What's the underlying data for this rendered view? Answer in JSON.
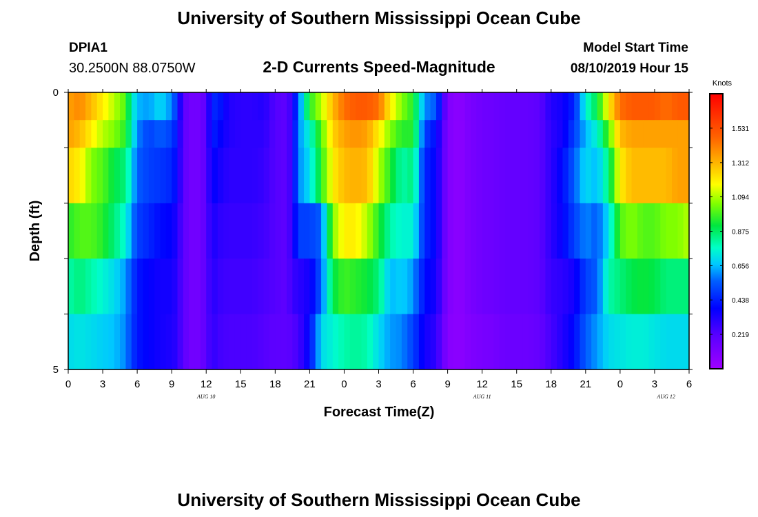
{
  "page": {
    "title": "University of Southern Mississippi Ocean Cube",
    "footer_title": "University of Southern Mississippi Ocean Cube"
  },
  "header": {
    "station_id": "DPIA1",
    "station_coords": "30.2500N 88.0750W",
    "plot_title": "2-D Currents Speed-Magnitude",
    "model_label": "Model Start Time",
    "model_time": "08/10/2019 Hour 15"
  },
  "chart_data": {
    "type": "heatmap",
    "title": "2-D Currents Speed-Magnitude",
    "xlabel": "Forecast Time(Z)",
    "ylabel": "Depth (ft)",
    "ylim": [
      0,
      5
    ],
    "y_tick_labels": [
      "0",
      "5"
    ],
    "x_tick_labels": [
      "0",
      "3",
      "6",
      "9",
      "12",
      "15",
      "18",
      "21",
      "0",
      "3",
      "6",
      "9",
      "12",
      "15",
      "18",
      "21",
      "0",
      "3",
      "6"
    ],
    "date_labels": [
      {
        "text": "AUG 10",
        "hour": 12
      },
      {
        "text": "AUG 11",
        "hour": 36
      },
      {
        "text": "AUG 12",
        "hour": 52
      }
    ],
    "x_range_hours": [
      0,
      54
    ],
    "colorbar": {
      "unit": "Knots",
      "ticks": [
        "1.531",
        "1.312",
        "1.094",
        "0.875",
        "0.656",
        "0.438",
        "0.219"
      ],
      "min": 0.0,
      "max": 1.75
    },
    "depth_rows": [
      0,
      0.5,
      1.5,
      2.5,
      3.5,
      4.5
    ],
    "hour_step": 0.5,
    "speed_anchors": {
      "hours": [
        0,
        1,
        2,
        3,
        4,
        5,
        5.5,
        6,
        7,
        8,
        9,
        9.5,
        10,
        11,
        12,
        12.5,
        13,
        14,
        15,
        16,
        17,
        18,
        19,
        19.5,
        20,
        21,
        22,
        23,
        24,
        25,
        26,
        27,
        28,
        29,
        30,
        31,
        32,
        33,
        34,
        35,
        36,
        37,
        38,
        39,
        40,
        41,
        42,
        43,
        44,
        45,
        46,
        47,
        48,
        49,
        50,
        51,
        52,
        53,
        54
      ],
      "rows": [
        [
          1.35,
          1.4,
          1.3,
          1.2,
          1.1,
          1.0,
          0.78,
          0.65,
          0.62,
          0.7,
          0.6,
          0.45,
          0.2,
          0.12,
          0.2,
          0.45,
          0.45,
          0.32,
          0.3,
          0.3,
          0.32,
          0.22,
          0.2,
          0.3,
          0.55,
          0.95,
          1.1,
          1.3,
          1.45,
          1.5,
          1.5,
          1.45,
          1.2,
          1.05,
          0.95,
          0.6,
          0.55,
          0.1,
          0.06,
          0.12,
          0.15,
          0.16,
          0.18,
          0.18,
          0.18,
          0.2,
          0.32,
          0.35,
          0.45,
          0.75,
          0.9,
          1.2,
          1.45,
          1.5,
          1.5,
          1.5,
          1.45,
          1.5,
          1.5
        ],
        [
          1.35,
          1.3,
          1.2,
          1.1,
          1.05,
          0.95,
          0.78,
          0.6,
          0.5,
          0.55,
          0.5,
          0.4,
          0.2,
          0.12,
          0.2,
          0.45,
          0.4,
          0.32,
          0.3,
          0.3,
          0.3,
          0.22,
          0.2,
          0.3,
          0.6,
          0.75,
          1.0,
          1.25,
          1.35,
          1.38,
          1.35,
          1.2,
          1.05,
          0.95,
          0.95,
          0.5,
          0.4,
          0.1,
          0.06,
          0.12,
          0.15,
          0.16,
          0.18,
          0.18,
          0.18,
          0.2,
          0.3,
          0.35,
          0.5,
          0.65,
          0.75,
          1.0,
          1.3,
          1.35,
          1.35,
          1.35,
          1.35,
          1.35,
          1.35
        ],
        [
          1.25,
          1.2,
          1.05,
          1.0,
          0.9,
          0.85,
          0.7,
          0.55,
          0.5,
          0.48,
          0.45,
          0.38,
          0.2,
          0.12,
          0.2,
          0.4,
          0.35,
          0.3,
          0.3,
          0.3,
          0.28,
          0.22,
          0.2,
          0.3,
          0.6,
          0.7,
          0.95,
          1.2,
          1.3,
          1.32,
          1.3,
          1.1,
          0.95,
          0.8,
          0.85,
          0.45,
          0.38,
          0.1,
          0.06,
          0.12,
          0.15,
          0.16,
          0.18,
          0.18,
          0.18,
          0.2,
          0.3,
          0.4,
          0.55,
          0.7,
          0.65,
          0.85,
          1.2,
          1.3,
          1.3,
          1.3,
          1.3,
          1.35,
          1.35
        ],
        [
          0.95,
          1.0,
          1.0,
          0.95,
          0.85,
          0.75,
          0.62,
          0.5,
          0.45,
          0.4,
          0.38,
          0.32,
          0.2,
          0.12,
          0.2,
          0.35,
          0.3,
          0.28,
          0.28,
          0.28,
          0.26,
          0.22,
          0.2,
          0.3,
          0.5,
          0.5,
          0.55,
          1.05,
          1.2,
          1.2,
          1.1,
          0.95,
          0.8,
          0.75,
          0.75,
          0.45,
          0.38,
          0.1,
          0.06,
          0.12,
          0.15,
          0.16,
          0.18,
          0.18,
          0.18,
          0.2,
          0.3,
          0.38,
          0.5,
          0.6,
          0.55,
          0.7,
          1.0,
          1.05,
          1.0,
          1.0,
          1.05,
          1.05,
          1.1
        ],
        [
          0.8,
          0.85,
          0.8,
          0.75,
          0.7,
          0.62,
          0.52,
          0.42,
          0.38,
          0.35,
          0.35,
          0.3,
          0.2,
          0.12,
          0.2,
          0.32,
          0.28,
          0.26,
          0.26,
          0.26,
          0.24,
          0.22,
          0.2,
          0.28,
          0.3,
          0.35,
          0.55,
          0.9,
          0.98,
          0.95,
          0.92,
          0.85,
          0.65,
          0.68,
          0.62,
          0.4,
          0.35,
          0.1,
          0.06,
          0.12,
          0.15,
          0.16,
          0.18,
          0.18,
          0.18,
          0.2,
          0.28,
          0.3,
          0.35,
          0.5,
          0.55,
          0.8,
          0.85,
          0.9,
          0.92,
          0.9,
          0.85,
          0.85,
          0.85
        ],
        [
          0.7,
          0.72,
          0.7,
          0.68,
          0.66,
          0.6,
          0.5,
          0.42,
          0.38,
          0.35,
          0.33,
          0.3,
          0.2,
          0.12,
          0.2,
          0.3,
          0.26,
          0.24,
          0.24,
          0.24,
          0.22,
          0.2,
          0.2,
          0.22,
          0.25,
          0.4,
          0.7,
          0.75,
          0.8,
          0.82,
          0.8,
          0.7,
          0.62,
          0.6,
          0.5,
          0.35,
          0.3,
          0.08,
          0.06,
          0.1,
          0.12,
          0.13,
          0.16,
          0.16,
          0.16,
          0.18,
          0.25,
          0.32,
          0.4,
          0.55,
          0.62,
          0.7,
          0.72,
          0.74,
          0.74,
          0.72,
          0.7,
          0.7,
          0.7
        ]
      ]
    }
  }
}
